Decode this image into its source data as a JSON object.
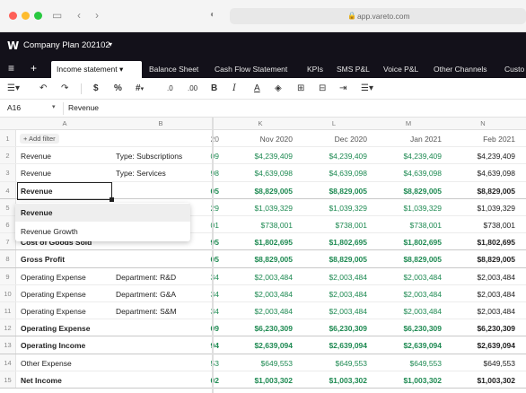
{
  "browser": {
    "url": "app.vareto.com"
  },
  "app": {
    "logo": "W",
    "plan_title": "Company Plan 202102"
  },
  "tabs": [
    {
      "label": "Income statement",
      "active": true
    },
    {
      "label": "Balance Sheet"
    },
    {
      "label": "Cash Flow Statement"
    },
    {
      "label": "KPIs"
    },
    {
      "label": "SMS P&L"
    },
    {
      "label": "Voice P&L"
    },
    {
      "label": "Other Channels"
    },
    {
      "label": "Custo"
    }
  ],
  "toolbar": {
    "currency": "$",
    "percent": "%",
    "number_format": "#",
    "decrease_decimals": ".0",
    "increase_decimals": ".00",
    "bold": "B",
    "italic": "I",
    "text_color": "A"
  },
  "formula_bar": {
    "cell_ref": "A16",
    "content": "Revenue"
  },
  "columns": [
    "A",
    "B",
    "20",
    "K",
    "L",
    "M",
    "N"
  ],
  "column_headers": {
    "A": "A",
    "B": "B",
    "partial": "20",
    "K": "Nov 2020",
    "L": "Dec 2020",
    "M": "Jan 2021",
    "N": "Feb 2021"
  },
  "filter_button": "+ Add filter",
  "rows": [
    {
      "n": "1",
      "a": "",
      "b": "",
      "p": "",
      "k": "",
      "l": "",
      "m": "",
      "nn": "",
      "style": "header"
    },
    {
      "n": "2",
      "a": "Revenue",
      "b": "Type: Subscriptions",
      "p": "09",
      "k": "$4,239,409",
      "l": "$4,239,409",
      "m": "$4,239,409",
      "nn": "$4,239,409"
    },
    {
      "n": "3",
      "a": "Revenue",
      "b": "Type: Services",
      "p": "98",
      "k": "$4,639,098",
      "l": "$4,639,098",
      "m": "$4,639,098",
      "nn": "$4,639,098"
    },
    {
      "n": "4",
      "a": "Revenue",
      "b": "",
      "p": "05",
      "k": "$8,829,005",
      "l": "$8,829,005",
      "m": "$8,829,005",
      "nn": "$8,829,005",
      "style": "bold"
    },
    {
      "n": "5",
      "a": "",
      "b": "",
      "p": "29",
      "k": "$1,039,329",
      "l": "$1,039,329",
      "m": "$1,039,329",
      "nn": "$1,039,329"
    },
    {
      "n": "6",
      "a": "",
      "b": "",
      "p": "01",
      "k": "$738,001",
      "l": "$738,001",
      "m": "$738,001",
      "nn": "$738,001"
    },
    {
      "n": "7",
      "a": "Cost of Goods Sold",
      "b": "",
      "p": "95",
      "k": "$1,802,695",
      "l": "$1,802,695",
      "m": "$1,802,695",
      "nn": "$1,802,695",
      "style": "bold"
    },
    {
      "n": "8",
      "a": "Gross Profit",
      "b": "",
      "p": "05",
      "k": "$8,829,005",
      "l": "$8,829,005",
      "m": "$8,829,005",
      "nn": "$8,829,005",
      "style": "bold"
    },
    {
      "n": "9",
      "a": "Operating Expense",
      "b": "Department: R&D",
      "p": "34",
      "k": "$2,003,484",
      "l": "$2,003,484",
      "m": "$2,003,484",
      "nn": "$2,003,484"
    },
    {
      "n": "10",
      "a": "Operating Expense",
      "b": "Department: G&A",
      "p": "34",
      "k": "$2,003,484",
      "l": "$2,003,484",
      "m": "$2,003,484",
      "nn": "$2,003,484"
    },
    {
      "n": "11",
      "a": "Operating Expense",
      "b": "Department: S&M",
      "p": "34",
      "k": "$2,003,484",
      "l": "$2,003,484",
      "m": "$2,003,484",
      "nn": "$2,003,484"
    },
    {
      "n": "12",
      "a": "Operating Expense",
      "b": "",
      "p": "09",
      "k": "$6,230,309",
      "l": "$6,230,309",
      "m": "$6,230,309",
      "nn": "$6,230,309",
      "style": "bold"
    },
    {
      "n": "13",
      "a": "Operating Income",
      "b": "",
      "p": "94",
      "k": "$2,639,094",
      "l": "$2,639,094",
      "m": "$2,639,094",
      "nn": "$2,639,094",
      "style": "bold"
    },
    {
      "n": "14",
      "a": "Other Expense",
      "b": "",
      "p": "53",
      "k": "$649,553",
      "l": "$649,553",
      "m": "$649,553",
      "nn": "$649,553"
    },
    {
      "n": "15",
      "a": "Net Income",
      "b": "",
      "p": "02",
      "k": "$1,003,302",
      "l": "$1,003,302",
      "m": "$1,003,302",
      "nn": "$1,003,302",
      "style": "bold"
    }
  ],
  "active_cell_text": "Revenue",
  "autocomplete": [
    {
      "label": "Revenue",
      "selected": true
    },
    {
      "label": "Revenue Growth"
    }
  ]
}
